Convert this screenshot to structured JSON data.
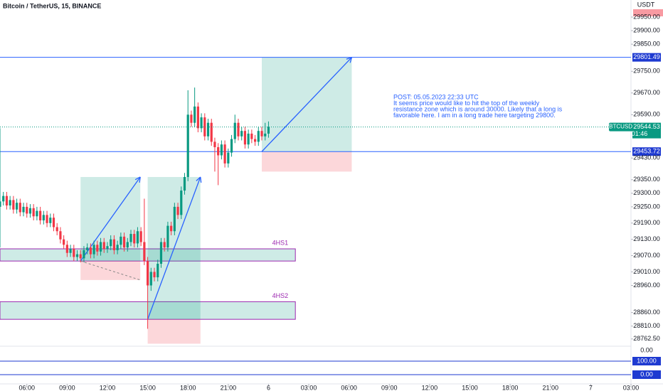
{
  "chart_data": {
    "type": "candlestick",
    "title": "Bitcoin / TetherUS, 15, BINANCE",
    "currency": "USDT",
    "symbol": "BTCUSDT",
    "countdown": "01:46",
    "last_price": 29544.53,
    "xlim": [
      4,
      51
    ],
    "ylim": [
      28741,
      30013
    ],
    "xticks": [
      {
        "value": 6,
        "label": "06:00"
      },
      {
        "value": 9,
        "label": "09:00"
      },
      {
        "value": 12,
        "label": "12:00"
      },
      {
        "value": 15,
        "label": "15:00"
      },
      {
        "value": 18,
        "label": "18:00"
      },
      {
        "value": 21,
        "label": "21:00"
      },
      {
        "value": 24,
        "label": "6"
      },
      {
        "value": 27,
        "label": "03:00"
      },
      {
        "value": 30,
        "label": "06:00"
      },
      {
        "value": 33,
        "label": "09:00"
      },
      {
        "value": 36,
        "label": "12:00"
      },
      {
        "value": 39,
        "label": "15:00"
      },
      {
        "value": 42,
        "label": "18:00"
      },
      {
        "value": 45,
        "label": "21:00"
      },
      {
        "value": 48,
        "label": "7"
      },
      {
        "value": 51,
        "label": "03:00"
      }
    ],
    "yticks": [
      {
        "value": 29950,
        "label": "29950.00"
      },
      {
        "value": 29900,
        "label": "29900.00"
      },
      {
        "value": 29850,
        "label": "29850.00"
      },
      {
        "value": 29750,
        "label": "29750.00"
      },
      {
        "value": 29670,
        "label": "29670.00"
      },
      {
        "value": 29590,
        "label": "29590.00"
      },
      {
        "value": 29430,
        "label": "29430.00"
      },
      {
        "value": 29350,
        "label": "29350.00"
      },
      {
        "value": 29300,
        "label": "29300.00"
      },
      {
        "value": 29250,
        "label": "29250.00"
      },
      {
        "value": 29190,
        "label": "29190.00"
      },
      {
        "value": 29130,
        "label": "29130.00"
      },
      {
        "value": 29070,
        "label": "29070.00"
      },
      {
        "value": 29010,
        "label": "29010.00"
      },
      {
        "value": 28960,
        "label": "28960.00"
      },
      {
        "value": 28860,
        "label": "28860.00"
      },
      {
        "value": 28810,
        "label": "28810.00"
      },
      {
        "value": 28762.5,
        "label": "28762.50"
      }
    ],
    "up_color": "#089981",
    "down_color": "#f23645",
    "x": [
      4,
      4.25,
      4.5,
      4.75,
      5,
      5.25,
      5.5,
      5.75,
      6,
      6.25,
      6.5,
      6.75,
      7,
      7.25,
      7.5,
      7.75,
      8,
      8.25,
      8.5,
      8.75,
      9,
      9.25,
      9.5,
      9.75,
      10,
      10.25,
      10.5,
      10.75,
      11,
      11.25,
      11.5,
      11.75,
      12,
      12.25,
      12.5,
      12.75,
      13,
      13.25,
      13.5,
      13.75,
      14,
      14.25,
      14.5,
      14.75,
      15,
      15.25,
      15.5,
      15.75,
      16,
      16.25,
      16.5,
      16.75,
      17,
      17.25,
      17.5,
      17.75,
      18,
      18.25,
      18.5,
      18.75,
      19,
      19.25,
      19.5,
      19.75,
      20,
      20.25,
      20.5,
      20.75,
      21,
      21.25,
      21.5,
      21.75,
      22,
      22.25,
      22.5,
      22.75,
      23,
      23.25,
      23.5,
      23.75,
      24
    ],
    "open": [
      29250,
      29270,
      29290,
      29255,
      29275,
      29240,
      29265,
      29230,
      29250,
      29225,
      29245,
      29215,
      29235,
      29200,
      29220,
      29190,
      29210,
      29175,
      29160,
      29130,
      29110,
      29080,
      29095,
      29065,
      29075,
      29060,
      29090,
      29100,
      29075,
      29110,
      29085,
      29120,
      29095,
      29105,
      29130,
      29090,
      29110,
      29140,
      29100,
      29120,
      29150,
      29115,
      29160,
      29120,
      29050,
      28960,
      29010,
      28990,
      29040,
      29120,
      29100,
      29180,
      29160,
      29250,
      29220,
      29310,
      29360,
      29590,
      29560,
      29620,
      29540,
      29580,
      29510,
      29560,
      29490,
      29470,
      29440,
      29480,
      29410,
      29450,
      29500,
      29560,
      29510,
      29530,
      29480,
      29520,
      29500,
      29490,
      29530,
      29510,
      29520
    ],
    "high": [
      29540,
      29305,
      29305,
      29290,
      29290,
      29280,
      29280,
      29265,
      29265,
      29260,
      29260,
      29250,
      29250,
      29235,
      29235,
      29225,
      29225,
      29190,
      29175,
      29145,
      29125,
      29110,
      29110,
      29090,
      29090,
      29105,
      29115,
      29115,
      29125,
      29125,
      29135,
      29135,
      29120,
      29145,
      29145,
      29125,
      29155,
      29155,
      29135,
      29165,
      29165,
      29175,
      29175,
      29280,
      29065,
      29025,
      29025,
      29055,
      29135,
      29135,
      29195,
      29195,
      29265,
      29265,
      29325,
      29375,
      29680,
      29605,
      29690,
      29635,
      29595,
      29595,
      29575,
      29575,
      29505,
      29485,
      29495,
      29495,
      29465,
      29515,
      29590,
      29575,
      29545,
      29545,
      29535,
      29535,
      29515,
      29545,
      29545,
      29560,
      29565
    ],
    "low": [
      29100,
      29255,
      29240,
      29240,
      29225,
      29225,
      29215,
      29215,
      29210,
      29210,
      29200,
      29200,
      29185,
      29185,
      29175,
      29175,
      29160,
      29145,
      29115,
      29095,
      29065,
      29065,
      29050,
      29050,
      29045,
      29045,
      29075,
      29060,
      29060,
      29070,
      29070,
      29080,
      29080,
      29090,
      29075,
      29075,
      29095,
      29085,
      29085,
      29105,
      29100,
      29100,
      29105,
      29035,
      28800,
      28940,
      28975,
      28975,
      29025,
      29085,
      29085,
      29145,
      29145,
      29205,
      29205,
      29295,
      29345,
      29545,
      29545,
      29525,
      29525,
      29495,
      29495,
      29475,
      29380,
      29330,
      29425,
      29395,
      29395,
      29435,
      29485,
      29495,
      29495,
      29465,
      29465,
      29485,
      29475,
      29475,
      29495,
      29495,
      29505
    ],
    "close": [
      29270,
      29290,
      29255,
      29275,
      29240,
      29265,
      29230,
      29250,
      29225,
      29245,
      29215,
      29235,
      29200,
      29220,
      29190,
      29210,
      29175,
      29160,
      29130,
      29110,
      29080,
      29095,
      29065,
      29075,
      29060,
      29090,
      29100,
      29075,
      29110,
      29085,
      29120,
      29095,
      29105,
      29130,
      29090,
      29110,
      29140,
      29100,
      29120,
      29150,
      29115,
      29160,
      29120,
      29050,
      28960,
      29010,
      28990,
      29040,
      29120,
      29100,
      29180,
      29160,
      29250,
      29220,
      29310,
      29360,
      29590,
      29560,
      29620,
      29540,
      29580,
      29510,
      29560,
      29490,
      29470,
      29440,
      29480,
      29410,
      29450,
      29500,
      29560,
      29510,
      29530,
      29480,
      29520,
      29500,
      29490,
      29530,
      29510,
      29520,
      29545
    ],
    "levels": [
      29801.49,
      29453.72
    ],
    "zones": [
      {
        "label": "4HS1",
        "top": 29095,
        "bottom": 29050,
        "x1": 26
      },
      {
        "label": "4HS2",
        "top": 28900,
        "bottom": 28835,
        "x1": 26
      }
    ],
    "positions": [
      {
        "x0": 10,
        "x1": 14.45,
        "target": 29360,
        "entry": 29050,
        "stop": 28980
      },
      {
        "x0": 15,
        "x1": 18.93,
        "target": 29360,
        "entry": 28835,
        "stop": 28745
      },
      {
        "x0": 23.5,
        "x1": 30.2,
        "target": 29801.49,
        "entry": 29453.72,
        "stop": 29380
      }
    ],
    "annotation": [
      "POST: 05.05.2023 22:33 UTC",
      "It seems price would like to hit the top of the weekly",
      "resistance zone which is around 30000. Likely that a long is",
      "favorable here. I am in a long trade here targeting 29800."
    ],
    "lower_pane": {
      "ylim": [
        0,
        100
      ],
      "scale_label": "0.00",
      "levels": [
        {
          "value": 100,
          "label": "100.00"
        },
        {
          "value": 0,
          "label": "0.00"
        }
      ]
    }
  }
}
